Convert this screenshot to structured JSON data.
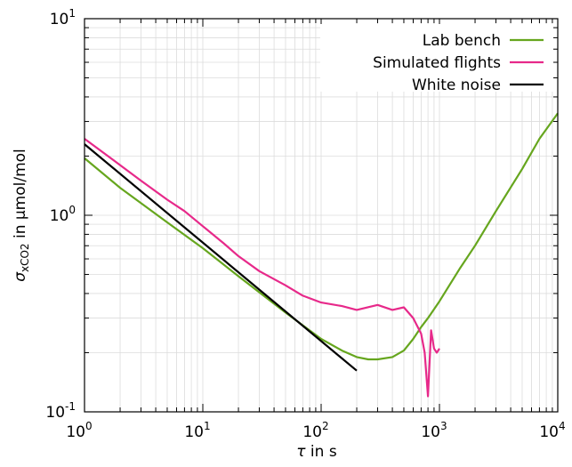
{
  "chart_data": {
    "type": "line",
    "xscale": "log",
    "yscale": "log",
    "xlim": [
      1,
      10000
    ],
    "ylim": [
      0.1,
      10
    ],
    "grid": true,
    "legend_position": "top-right",
    "xlabel": {
      "symbol": "τ",
      "text": " in s"
    },
    "ylabel": {
      "symbol": "σ",
      "sub": "xCO2",
      "text": " in μmol/mol"
    },
    "xticks": [
      {
        "base": "10",
        "exp": "0",
        "value": 1
      },
      {
        "base": "10",
        "exp": "1",
        "value": 10
      },
      {
        "base": "10",
        "exp": "2",
        "value": 100
      },
      {
        "base": "10",
        "exp": "3",
        "value": 1000
      },
      {
        "base": "10",
        "exp": "4",
        "value": 10000
      }
    ],
    "yticks": [
      {
        "base": "10",
        "exp": "-1",
        "value": 0.1
      },
      {
        "base": "10",
        "exp": "0",
        "value": 1
      },
      {
        "base": "10",
        "exp": "1",
        "value": 10
      }
    ],
    "series": [
      {
        "name": "Lab bench",
        "color": "#66a61e",
        "x": [
          1,
          2,
          5,
          10,
          20,
          50,
          100,
          150,
          200,
          250,
          300,
          400,
          500,
          600,
          700,
          800,
          1000,
          1500,
          2000,
          3000,
          5000,
          7000,
          10000
        ],
        "y": [
          1.95,
          1.38,
          0.92,
          0.68,
          0.49,
          0.32,
          0.235,
          0.205,
          0.19,
          0.185,
          0.185,
          0.19,
          0.205,
          0.235,
          0.27,
          0.3,
          0.365,
          0.54,
          0.7,
          1.05,
          1.72,
          2.45,
          3.3
        ]
      },
      {
        "name": "Simulated flights",
        "color": "#e7298a",
        "x": [
          1,
          2,
          3,
          5,
          7,
          10,
          15,
          20,
          30,
          50,
          70,
          100,
          150,
          200,
          300,
          400,
          500,
          600,
          700,
          750,
          800,
          850,
          900,
          950,
          1000
        ],
        "y": [
          2.45,
          1.8,
          1.5,
          1.2,
          1.05,
          0.88,
          0.72,
          0.62,
          0.52,
          0.44,
          0.39,
          0.36,
          0.345,
          0.33,
          0.35,
          0.33,
          0.34,
          0.3,
          0.25,
          0.2,
          0.12,
          0.26,
          0.21,
          0.2,
          0.21
        ]
      },
      {
        "name": "White noise",
        "color": "#000000",
        "x": [
          1,
          200
        ],
        "y": [
          2.3,
          0.162
        ]
      }
    ]
  }
}
